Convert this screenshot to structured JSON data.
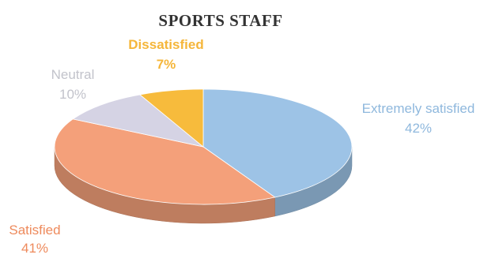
{
  "chart_data": {
    "type": "pie",
    "title": "SPORTS STAFF",
    "title_color": "#333333",
    "categories": [
      "Extremely satisfied",
      "Satisfied",
      "Neutral",
      "Dissatisfied"
    ],
    "values": [
      42,
      41,
      10,
      7
    ],
    "value_labels": [
      "42%",
      "41%",
      "10%",
      "7%"
    ],
    "colors": [
      "#9DC3E6",
      "#F4A07A",
      "#D5D3E4",
      "#F7BB3C"
    ],
    "label_colors": [
      "#8FB8DD",
      "#EE8A5C",
      "#C2C3CB",
      "#F5B63A"
    ],
    "style": "3d-tilted",
    "legend": "none",
    "data_labels": "outside"
  }
}
